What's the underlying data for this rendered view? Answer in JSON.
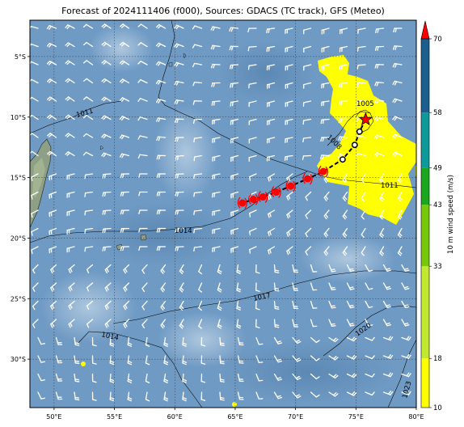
{
  "title": "Forecast of 2024111406 (f000), Sources: GDACS (TC track), GFS (Meteo)",
  "map": {
    "lon_ticks": [
      "50°E",
      "55°E",
      "60°E",
      "65°E",
      "70°E",
      "75°E",
      "80°E"
    ],
    "lat_ticks": [
      "5°S",
      "10°S",
      "15°S",
      "20°S",
      "25°S",
      "30°S"
    ],
    "lon_range": [
      48,
      80
    ],
    "lat_range": [
      -34,
      -2
    ],
    "isobar_labels": [
      "1011",
      "1014",
      "1017",
      "1014",
      "1020",
      "1023",
      "1008",
      "1005",
      "1011"
    ],
    "colors": {
      "ocean": "#6f9ac4",
      "high_wind": "#ffff00",
      "track_dot": "#ff0000",
      "storm_star": "#ff0000",
      "barb": "#ffffff"
    }
  },
  "track": {
    "points": [
      {
        "lon": 75.8,
        "lat": -10.2,
        "kind": "current"
      },
      {
        "lon": 75.3,
        "lat": -11.2,
        "kind": "low"
      },
      {
        "lon": 74.9,
        "lat": -12.3,
        "kind": "low"
      },
      {
        "lon": 73.9,
        "lat": -13.5,
        "kind": "low"
      },
      {
        "lon": 72.3,
        "lat": -14.5,
        "kind": "storm"
      },
      {
        "lon": 71.0,
        "lat": -15.1,
        "kind": "storm"
      },
      {
        "lon": 69.6,
        "lat": -15.7,
        "kind": "storm"
      },
      {
        "lon": 68.4,
        "lat": -16.2,
        "kind": "storm"
      },
      {
        "lon": 67.3,
        "lat": -16.6,
        "kind": "storm"
      },
      {
        "lon": 66.5,
        "lat": -16.8,
        "kind": "storm"
      },
      {
        "lon": 65.6,
        "lat": -17.1,
        "kind": "storm"
      }
    ]
  },
  "colorbar": {
    "label": "10 m wind speed (m/s)",
    "ticks": [
      "10",
      "18",
      "33",
      "43",
      "49",
      "58",
      "70"
    ],
    "colors": [
      "#ffff00",
      "#c2e832",
      "#77c80a",
      "#1aa71e",
      "#0e9a9a",
      "#1c5f8e",
      "#20306a"
    ],
    "extend_color": "#ff0000"
  }
}
